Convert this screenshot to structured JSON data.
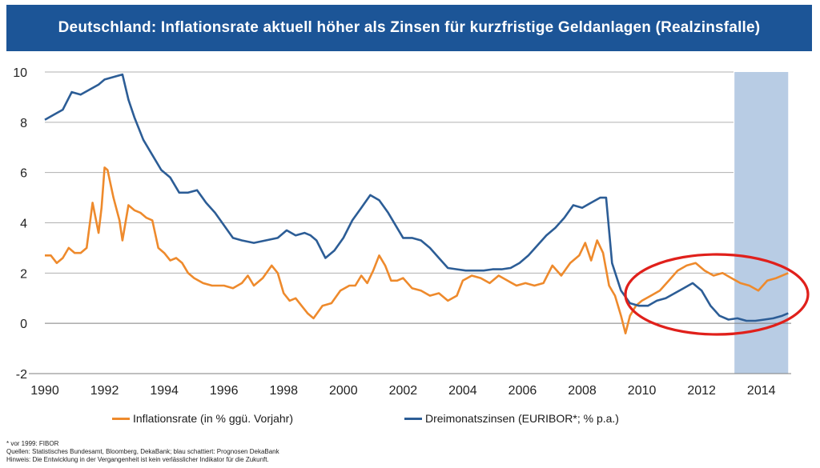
{
  "title": "Deutschland: Inflationsrate aktuell höher als Zinsen für kurzfristige Geldanlagen (Realzinsfalle)",
  "legend": {
    "inflation": "Inflationsrate (in % ggü. Vorjahr)",
    "rates": "Dreimonatszinsen (EURIBOR*; % p.a.)"
  },
  "notes": {
    "line1": "* vor 1999: FIBOR",
    "line2": "Quellen: Statistisches Bundesamt, Bloomberg, DekaBank; blau schattiert: Prognosen DekaBank",
    "line3": "Hinweis: Die Entwicklung in der Vergangenheit ist kein verlässlicher Indikator für die Zukunft."
  },
  "colors": {
    "inflation": "#ee8a2c",
    "rates": "#2c5d96",
    "forecast_shade": "#b8cce4",
    "highlight_circle": "#e0201b",
    "title_bg": "#1c5597"
  },
  "chart_data": {
    "type": "line",
    "xlim": [
      1990,
      2015
    ],
    "ylim": [
      -2,
      10
    ],
    "x_ticks": [
      "1990",
      "1992",
      "1994",
      "1996",
      "1998",
      "2000",
      "2002",
      "2004",
      "2006",
      "2008",
      "2010",
      "2012",
      "2014"
    ],
    "y_ticks": [
      "-2",
      "0",
      "2",
      "4",
      "6",
      "8",
      "10"
    ],
    "grid": "horizontal",
    "legend_position": "bottom",
    "forecast_region": [
      2013.1,
      2014.9
    ],
    "highlight": "ellipse around 2009.7–2015",
    "series": [
      {
        "name": "Inflationsrate (in % ggü. Vorjahr)",
        "x": [
          1990.0,
          1990.2,
          1990.4,
          1990.6,
          1990.8,
          1991.0,
          1991.2,
          1991.4,
          1991.6,
          1991.8,
          1991.9,
          1992.0,
          1992.1,
          1992.3,
          1992.5,
          1992.6,
          1992.8,
          1993.0,
          1993.2,
          1993.4,
          1993.6,
          1993.8,
          1994.0,
          1994.2,
          1994.4,
          1994.6,
          1994.8,
          1995.0,
          1995.3,
          1995.6,
          1996.0,
          1996.3,
          1996.6,
          1996.8,
          1997.0,
          1997.3,
          1997.6,
          1997.8,
          1998.0,
          1998.2,
          1998.4,
          1998.6,
          1998.8,
          1999.0,
          1999.3,
          1999.6,
          1999.9,
          2000.2,
          2000.4,
          2000.6,
          2000.8,
          2001.0,
          2001.2,
          2001.4,
          2001.6,
          2001.8,
          2002.0,
          2002.3,
          2002.6,
          2002.9,
          2003.2,
          2003.5,
          2003.8,
          2004.0,
          2004.3,
          2004.6,
          2004.9,
          2005.2,
          2005.5,
          2005.8,
          2006.1,
          2006.4,
          2006.7,
          2007.0,
          2007.3,
          2007.6,
          2007.9,
          2008.1,
          2008.3,
          2008.5,
          2008.7,
          2008.9,
          2009.1,
          2009.3,
          2009.45,
          2009.6,
          2009.8,
          2010.0,
          2010.3,
          2010.6,
          2010.9,
          2011.2,
          2011.5,
          2011.8,
          2012.1,
          2012.4,
          2012.7,
          2013.0,
          2013.3,
          2013.6,
          2013.9,
          2014.2,
          2014.5,
          2014.9
        ],
        "values": [
          2.7,
          2.7,
          2.4,
          2.6,
          3.0,
          2.8,
          2.8,
          3.0,
          4.8,
          3.6,
          4.6,
          6.2,
          6.1,
          5.0,
          4.1,
          3.3,
          4.7,
          4.5,
          4.4,
          4.2,
          4.1,
          3.0,
          2.8,
          2.5,
          2.6,
          2.4,
          2.0,
          1.8,
          1.6,
          1.5,
          1.5,
          1.4,
          1.6,
          1.9,
          1.5,
          1.8,
          2.3,
          2.0,
          1.2,
          0.9,
          1.0,
          0.7,
          0.4,
          0.2,
          0.7,
          0.8,
          1.3,
          1.5,
          1.5,
          1.9,
          1.6,
          2.1,
          2.7,
          2.3,
          1.7,
          1.7,
          1.8,
          1.4,
          1.3,
          1.1,
          1.2,
          0.9,
          1.1,
          1.7,
          1.9,
          1.8,
          1.6,
          1.9,
          1.7,
          1.5,
          1.6,
          1.5,
          1.6,
          2.3,
          1.9,
          2.4,
          2.7,
          3.2,
          2.5,
          3.3,
          2.8,
          1.5,
          1.1,
          0.3,
          -0.4,
          0.3,
          0.7,
          0.9,
          1.1,
          1.3,
          1.7,
          2.1,
          2.3,
          2.4,
          2.1,
          1.9,
          2.0,
          1.8,
          1.6,
          1.5,
          1.3,
          1.7,
          1.8,
          2.0
        ]
      },
      {
        "name": "Dreimonatszinsen (EURIBOR*; % p.a.)",
        "x": [
          1990.0,
          1990.3,
          1990.6,
          1990.9,
          1991.2,
          1991.5,
          1991.8,
          1992.0,
          1992.3,
          1992.6,
          1992.8,
          1993.0,
          1993.3,
          1993.6,
          1993.9,
          1994.2,
          1994.5,
          1994.8,
          1995.1,
          1995.4,
          1995.7,
          1996.0,
          1996.3,
          1996.6,
          1997.0,
          1997.4,
          1997.8,
          1998.1,
          1998.4,
          1998.7,
          1998.9,
          1999.1,
          1999.4,
          1999.7,
          2000.0,
          2000.3,
          2000.6,
          2000.9,
          2001.2,
          2001.5,
          2001.8,
          2002.0,
          2002.3,
          2002.6,
          2002.9,
          2003.2,
          2003.5,
          2003.8,
          2004.1,
          2004.4,
          2004.7,
          2005.0,
          2005.3,
          2005.6,
          2005.9,
          2006.2,
          2006.5,
          2006.8,
          2007.1,
          2007.4,
          2007.7,
          2008.0,
          2008.3,
          2008.6,
          2008.8,
          2009.0,
          2009.3,
          2009.6,
          2009.9,
          2010.2,
          2010.5,
          2010.8,
          2011.1,
          2011.4,
          2011.7,
          2012.0,
          2012.3,
          2012.6,
          2012.9,
          2013.2,
          2013.5,
          2013.8,
          2014.1,
          2014.4,
          2014.7,
          2014.9
        ],
        "values": [
          8.1,
          8.3,
          8.5,
          9.2,
          9.1,
          9.3,
          9.5,
          9.7,
          9.8,
          9.9,
          8.9,
          8.2,
          7.3,
          6.7,
          6.1,
          5.8,
          5.2,
          5.2,
          5.3,
          4.8,
          4.4,
          3.9,
          3.4,
          3.3,
          3.2,
          3.3,
          3.4,
          3.7,
          3.5,
          3.6,
          3.5,
          3.3,
          2.6,
          2.9,
          3.4,
          4.1,
          4.6,
          5.1,
          4.9,
          4.4,
          3.8,
          3.4,
          3.4,
          3.3,
          3.0,
          2.6,
          2.2,
          2.15,
          2.1,
          2.1,
          2.1,
          2.15,
          2.15,
          2.2,
          2.4,
          2.7,
          3.1,
          3.5,
          3.8,
          4.2,
          4.7,
          4.6,
          4.8,
          5.0,
          5.0,
          2.4,
          1.3,
          0.8,
          0.7,
          0.7,
          0.9,
          1.0,
          1.2,
          1.4,
          1.6,
          1.3,
          0.7,
          0.3,
          0.15,
          0.2,
          0.1,
          0.1,
          0.15,
          0.2,
          0.3,
          0.4
        ]
      }
    ]
  }
}
